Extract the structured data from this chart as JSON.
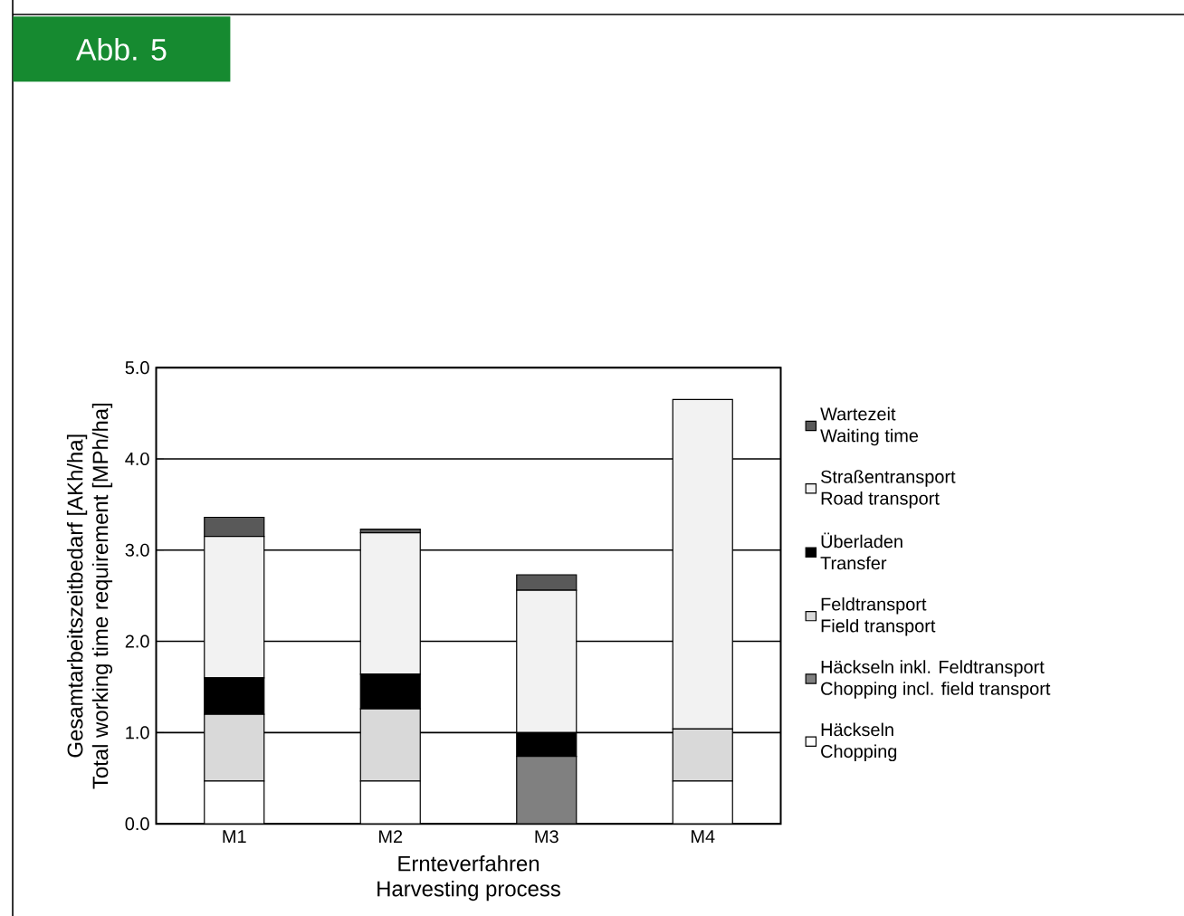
{
  "chart_data": {
    "type": "bar",
    "stacked": true,
    "title": "Abb. 5",
    "xlabel": "Ernteverfahren\nHarvesting process",
    "ylabel": "Gesamtarbeitszeitbedarf [AKh/ha]\nTotal working time requirement [MPh/ha]",
    "categories": [
      "M1",
      "M2",
      "M3",
      "M4"
    ],
    "series": [
      {
        "name": "Häckseln\nChopping",
        "color": "#ffffff",
        "values": [
          0.47,
          0.47,
          0,
          0.47
        ]
      },
      {
        "name": "Häckseln inkl. Feldtransport\nChopping incl. field transport",
        "color": "#808080",
        "values": [
          0,
          0,
          0.74,
          0
        ]
      },
      {
        "name": "Feldtransport\nField transport",
        "color": "#d9d9d9",
        "values": [
          0.73,
          0.79,
          0,
          0.57
        ]
      },
      {
        "name": "Überladen\nTransfer",
        "color": "#000000",
        "values": [
          0.4,
          0.38,
          0.26,
          0
        ]
      },
      {
        "name": "Straßentransport\nRoad transport",
        "color": "#f2f2f2",
        "values": [
          1.55,
          1.55,
          1.56,
          3.61
        ]
      },
      {
        "name": "Wartezeit\nWaiting time",
        "color": "#595959",
        "values": [
          0.21,
          0.04,
          0.17,
          0
        ]
      }
    ],
    "ylim": [
      0,
      5
    ],
    "yticks": [
      {
        "value": 0,
        "label": "0.0"
      },
      {
        "value": 1,
        "label": "1.0"
      },
      {
        "value": 2,
        "label": "2.0"
      },
      {
        "value": 3,
        "label": "3.0"
      },
      {
        "value": 4,
        "label": "4.0"
      },
      {
        "value": 5,
        "label": "5.0"
      }
    ],
    "grid": "y",
    "legend": "right"
  }
}
